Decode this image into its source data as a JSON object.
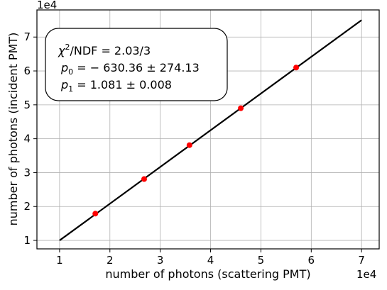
{
  "chart_data": {
    "type": "scatter",
    "xlabel": "number of photons (scattering PMT)",
    "ylabel": "number of photons (incident PMT)",
    "x_exponent_label": "1e4",
    "y_exponent_label": "1e4",
    "xlim": [
      0.55,
      7.35
    ],
    "ylim": [
      0.75,
      7.8
    ],
    "x_ticks": [
      1,
      2,
      3,
      4,
      5,
      6,
      7
    ],
    "y_ticks": [
      1,
      2,
      3,
      4,
      5,
      6,
      7
    ],
    "grid": true,
    "points": {
      "x": [
        1.71,
        2.68,
        3.58,
        4.6,
        5.7
      ],
      "y": [
        1.79,
        2.81,
        3.81,
        4.9,
        6.1
      ],
      "color": "#ff0000"
    },
    "fit_line": {
      "x": [
        1.0,
        7.0
      ],
      "y": [
        1.0,
        7.5
      ],
      "color": "#000000"
    },
    "annotation": {
      "line1": "/NDF = 2.03/3",
      "line2": " = − 630.36 ± 274.13",
      "line3": " = 1.081 ± 0.008"
    }
  }
}
